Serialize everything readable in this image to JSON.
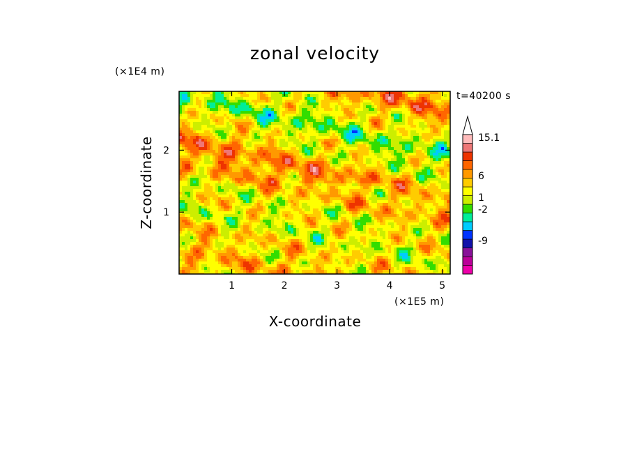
{
  "chart_data": {
    "type": "heatmap",
    "title": "zonal velocity",
    "xlabel": "X-coordinate",
    "ylabel": "Z-coordinate",
    "x_scale_label": "(×1E5 m)",
    "y_scale_label": "(×1E4 m)",
    "time_label": "t=40200 s",
    "xlim": [
      0,
      5.15
    ],
    "ylim": [
      0,
      2.95
    ],
    "x_ticks": [
      {
        "value": 1,
        "label": "1"
      },
      {
        "value": 2,
        "label": "2"
      },
      {
        "value": 3,
        "label": "3"
      },
      {
        "value": 4,
        "label": "4"
      },
      {
        "value": 5,
        "label": "5"
      }
    ],
    "y_ticks": [
      {
        "value": 1,
        "label": "1"
      },
      {
        "value": 2,
        "label": "2"
      }
    ],
    "grid": false,
    "colorbar": {
      "levels": [
        {
          "color": "#ee00aa"
        },
        {
          "color": "#bb0099"
        },
        {
          "color": "#881199"
        },
        {
          "color": "#1111aa"
        },
        {
          "color": "#0033ff"
        },
        {
          "color": "#00ccff"
        },
        {
          "color": "#00ee99"
        },
        {
          "color": "#33dd00"
        },
        {
          "color": "#ccee00"
        },
        {
          "color": "#ffff00"
        },
        {
          "color": "#ffcc00"
        },
        {
          "color": "#ff9900"
        },
        {
          "color": "#ff6600"
        },
        {
          "color": "#ee3300"
        },
        {
          "color": "#ee7777"
        },
        {
          "color": "#ffbbbb"
        }
      ],
      "labels": [
        "-9",
        "-2",
        "1",
        "6",
        "15.1"
      ],
      "max_triangle_color": "#ffffff"
    }
  }
}
